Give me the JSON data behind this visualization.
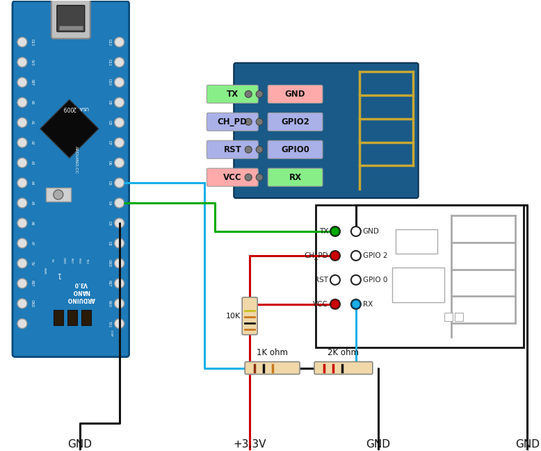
{
  "bg_color": "#ffffff",
  "arduino_color": "#1e7ab8",
  "arduino_edge": "#0a4a7a",
  "esp_photo_color": "#1a5c8a",
  "wire_blue": "#1ab0e8",
  "wire_green": "#00aa00",
  "wire_red": "#cc0000",
  "wire_black": "#111111",
  "resistor_body": "#f0d8a8",
  "pin_labels_left": [
    "TX",
    "CH_PD",
    "RST",
    "VCC"
  ],
  "pin_labels_right": [
    "GND",
    "GPIO2",
    "GPIO0",
    "RX"
  ],
  "pin_colors_left": [
    "#88ee88",
    "#aab0e8",
    "#aab0e8",
    "#ffaaaa"
  ],
  "pin_colors_right": [
    "#ffaaaa",
    "#aab0e8",
    "#aab0e8",
    "#88ee88"
  ],
  "bottom_labels": [
    "GND",
    "+3.3V",
    "GND",
    "GND"
  ],
  "resistor_labels": [
    "1K ohm",
    "2K ohm"
  ],
  "arduino_left_pins": [
    "D13",
    "3V3",
    "REF",
    "A0",
    "A1",
    "A2",
    "A3",
    "A4",
    "A5",
    "A6",
    "A7",
    "5V",
    "RST",
    "GND"
  ],
  "arduino_right_pins": [
    "D12",
    "D11",
    "D10",
    "D9",
    "D8",
    "D7",
    "D6",
    "D5",
    "D4",
    "D3",
    "D2",
    "GND",
    "RST",
    "RX0",
    "TX1"
  ]
}
